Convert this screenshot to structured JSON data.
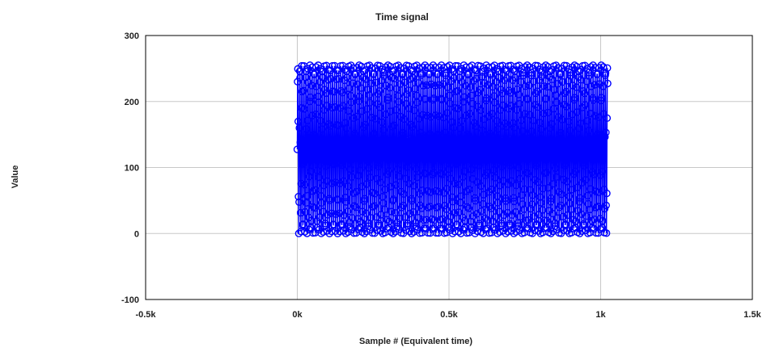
{
  "chart_data": {
    "type": "line",
    "title": "Time signal",
    "xlabel": "Sample # (Equivalent time)",
    "ylabel": "Value",
    "xlim": [
      -500,
      1500
    ],
    "ylim": [
      -100,
      300
    ],
    "x_ticks": [
      -500,
      0,
      500,
      1000,
      1500
    ],
    "x_tick_labels": [
      "-0.5k",
      "0k",
      "0.5k",
      "1k",
      "1.5k"
    ],
    "y_ticks": [
      -100,
      0,
      100,
      200,
      300
    ],
    "y_tick_labels": [
      "-100",
      "0",
      "100",
      "200",
      "300"
    ],
    "grid": true,
    "marker": "circle",
    "series": [
      {
        "color": "#0000ff",
        "x_start": 0,
        "x_end": 1023,
        "y_min": 0,
        "y_max": 255
      }
    ]
  }
}
